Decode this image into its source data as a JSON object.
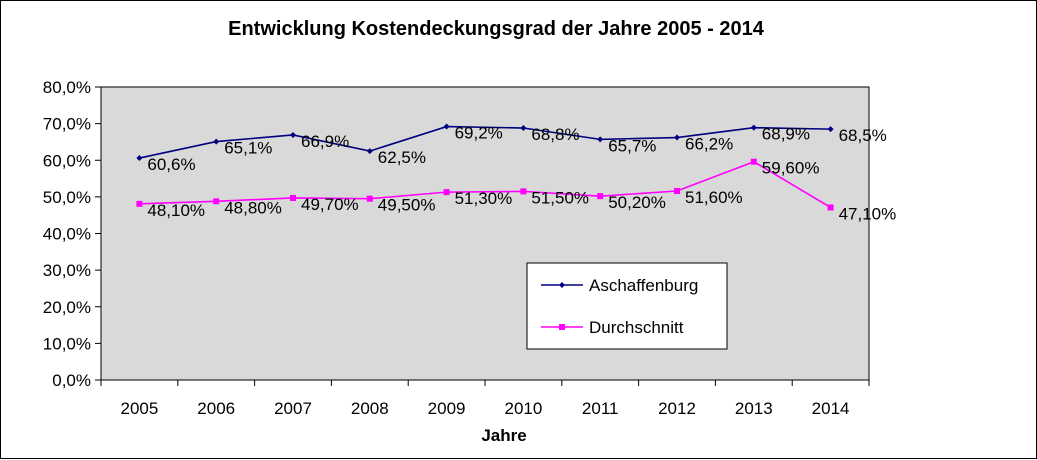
{
  "chart_data": {
    "type": "line",
    "title": "Entwicklung Kostendeckungsgrad der Jahre 2005 - 2014",
    "xlabel": "Jahre",
    "ylabel": "",
    "categories": [
      "2005",
      "2006",
      "2007",
      "2008",
      "2009",
      "2010",
      "2011",
      "2012",
      "2013",
      "2014"
    ],
    "ylim": [
      0,
      80
    ],
    "yticks": [
      "0,0%",
      "10,0%",
      "20,0%",
      "30,0%",
      "40,0%",
      "50,0%",
      "60,0%",
      "70,0%",
      "80,0%"
    ],
    "grid": false,
    "legend_position": "lower-right-inside",
    "series": [
      {
        "name": "Aschaffenburg",
        "color": "#000080",
        "marker": "diamond",
        "values": [
          60.6,
          65.1,
          66.9,
          62.5,
          69.2,
          68.8,
          65.7,
          66.2,
          68.9,
          68.5
        ],
        "labels": [
          "60,6%",
          "65,1%",
          "66,9%",
          "62,5%",
          "69,2%",
          "68,8%",
          "65,7%",
          "66,2%",
          "68,9%",
          "68,5%"
        ]
      },
      {
        "name": "Durchschnitt",
        "color": "#ff00ff",
        "marker": "square",
        "values": [
          48.1,
          48.8,
          49.7,
          49.5,
          51.3,
          51.5,
          50.2,
          51.6,
          59.6,
          47.1
        ],
        "labels": [
          "48,10%",
          "48,80%",
          "49,70%",
          "49,50%",
          "51,30%",
          "51,50%",
          "50,20%",
          "51,60%",
          "59,60%",
          "47,10%"
        ]
      }
    ],
    "plot_background": "#d9d9d9"
  }
}
